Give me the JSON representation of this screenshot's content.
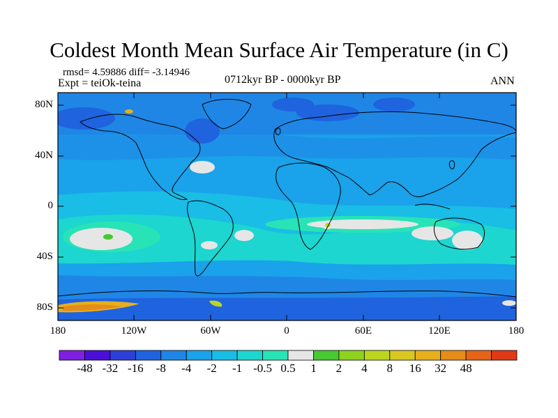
{
  "header": {
    "title": "Coldest Month Mean Surface Air Temperature (in C)",
    "stats": "rmsd= 4.59886 diff= -3.14946",
    "experiment": "Expt = teiOk-teina",
    "period": "0712kyr BP - 0000kyr BP",
    "season": "ANN"
  },
  "axes": {
    "lat_labels": [
      "80N",
      "40N",
      "0",
      "40S",
      "80S"
    ],
    "lon_labels": [
      "180",
      "120W",
      "60W",
      "0",
      "60E",
      "120E",
      "180"
    ]
  },
  "colorbar": {
    "labels": [
      "-48",
      "-32",
      "-16",
      "-8",
      "-4",
      "-2",
      "-1",
      "-0.5",
      "0.5",
      "1",
      "2",
      "4",
      "8",
      "16",
      "32",
      "48"
    ],
    "colors": [
      "#7f1fe0",
      "#4a10d8",
      "#2c3fd6",
      "#1f63de",
      "#1f86e6",
      "#1aa2ea",
      "#19bde6",
      "#1cd6cf",
      "#28e3b5",
      "#e6e6e6",
      "#48c832",
      "#8ed21e",
      "#bcd620",
      "#d9c820",
      "#e6b01c",
      "#e68c1a",
      "#e46418",
      "#e03a14"
    ]
  }
}
